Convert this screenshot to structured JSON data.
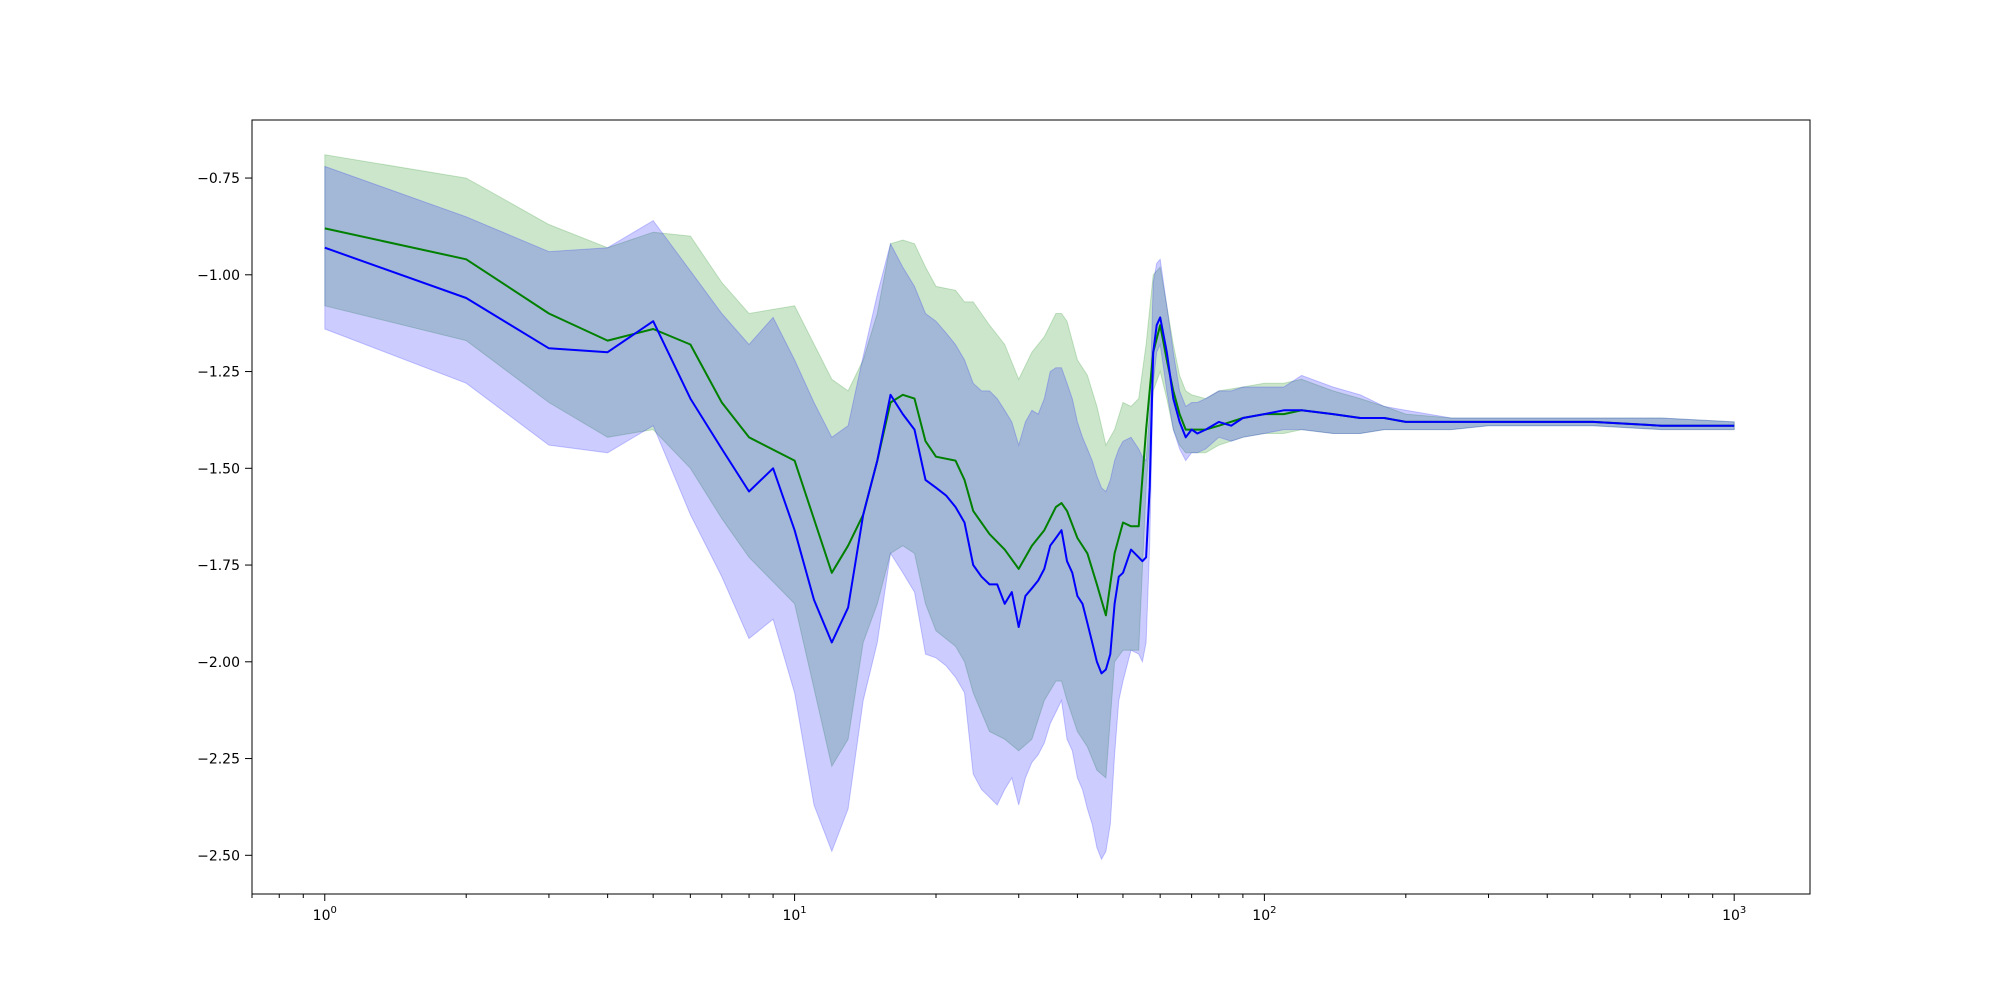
{
  "chart_data": {
    "type": "line",
    "title": "",
    "xlabel": "",
    "ylabel": "",
    "xscale": "log",
    "xlim": [
      0.7,
      1450
    ],
    "ylim": [
      -2.6,
      -0.6
    ],
    "grid": false,
    "legend": "none",
    "x_tick_labels": [
      {
        "value": 1,
        "base": "10",
        "exp": "0"
      },
      {
        "value": 10,
        "base": "10",
        "exp": "1"
      },
      {
        "value": 100,
        "base": "10",
        "exp": "2"
      },
      {
        "value": 1000,
        "base": "10",
        "exp": "3"
      }
    ],
    "y_ticks": [
      -0.75,
      -1.0,
      -1.25,
      -1.5,
      -1.75,
      -2.0,
      -2.25,
      -2.5
    ],
    "y_tick_labels": [
      "−0.75",
      "−1.00",
      "−1.25",
      "−1.50",
      "−1.75",
      "−2.00",
      "−2.25",
      "−2.50"
    ],
    "series": [
      {
        "color": "#008000",
        "band_color": "#008000",
        "band_alpha": 0.2,
        "x": [
          1,
          2,
          3,
          4,
          5,
          6,
          7,
          8,
          10,
          12,
          13,
          14,
          15,
          16,
          17,
          18,
          19,
          20,
          22,
          23,
          24,
          26,
          28,
          30,
          32,
          34,
          36,
          37,
          38,
          40,
          42,
          44,
          46,
          48,
          50,
          52,
          54,
          56,
          58,
          60,
          62,
          64,
          66,
          68,
          70,
          75,
          80,
          90,
          100,
          110,
          120,
          140,
          160,
          180,
          200,
          250,
          300,
          400,
          500,
          700,
          1000
        ],
        "y": [
          -0.88,
          -0.96,
          -1.1,
          -1.17,
          -1.14,
          -1.18,
          -1.33,
          -1.42,
          -1.48,
          -1.77,
          -1.7,
          -1.62,
          -1.48,
          -1.33,
          -1.31,
          -1.32,
          -1.43,
          -1.47,
          -1.48,
          -1.53,
          -1.61,
          -1.67,
          -1.71,
          -1.76,
          -1.7,
          -1.66,
          -1.6,
          -1.59,
          -1.61,
          -1.68,
          -1.72,
          -1.8,
          -1.88,
          -1.72,
          -1.64,
          -1.65,
          -1.65,
          -1.4,
          -1.2,
          -1.13,
          -1.22,
          -1.3,
          -1.36,
          -1.4,
          -1.4,
          -1.4,
          -1.39,
          -1.37,
          -1.36,
          -1.36,
          -1.35,
          -1.36,
          -1.37,
          -1.37,
          -1.38,
          -1.38,
          -1.38,
          -1.38,
          -1.38,
          -1.39,
          -1.39
        ],
        "lower": [
          -1.08,
          -1.17,
          -1.33,
          -1.42,
          -1.4,
          -1.5,
          -1.63,
          -1.73,
          -1.85,
          -2.27,
          -2.2,
          -1.95,
          -1.85,
          -1.72,
          -1.7,
          -1.72,
          -1.85,
          -1.92,
          -1.96,
          -2.0,
          -2.08,
          -2.18,
          -2.2,
          -2.23,
          -2.2,
          -2.1,
          -2.05,
          -2.05,
          -2.1,
          -2.18,
          -2.22,
          -2.28,
          -2.3,
          -2.0,
          -1.97,
          -1.97,
          -1.97,
          -1.55,
          -1.3,
          -1.25,
          -1.32,
          -1.4,
          -1.44,
          -1.46,
          -1.46,
          -1.46,
          -1.44,
          -1.42,
          -1.41,
          -1.41,
          -1.4,
          -1.41,
          -1.41,
          -1.4,
          -1.4,
          -1.4,
          -1.39,
          -1.39,
          -1.39,
          -1.4,
          -1.4
        ],
        "upper": [
          -0.69,
          -0.75,
          -0.87,
          -0.93,
          -0.89,
          -0.9,
          -1.02,
          -1.1,
          -1.08,
          -1.27,
          -1.3,
          -1.22,
          -1.1,
          -0.92,
          -0.91,
          -0.92,
          -0.98,
          -1.03,
          -1.04,
          -1.07,
          -1.07,
          -1.13,
          -1.18,
          -1.27,
          -1.2,
          -1.16,
          -1.1,
          -1.1,
          -1.12,
          -1.22,
          -1.26,
          -1.34,
          -1.44,
          -1.4,
          -1.33,
          -1.34,
          -1.32,
          -1.18,
          -1.0,
          -0.98,
          -1.08,
          -1.18,
          -1.26,
          -1.3,
          -1.31,
          -1.32,
          -1.3,
          -1.29,
          -1.28,
          -1.28,
          -1.27,
          -1.3,
          -1.32,
          -1.34,
          -1.36,
          -1.37,
          -1.37,
          -1.37,
          -1.37,
          -1.37,
          -1.38
        ]
      },
      {
        "color": "#0000ff",
        "band_color": "#0000ff",
        "band_alpha": 0.2,
        "x": [
          1,
          2,
          3,
          4,
          5,
          6,
          7,
          8,
          9,
          10,
          11,
          12,
          13,
          14,
          15,
          16,
          17,
          18,
          19,
          20,
          21,
          22,
          23,
          24,
          25,
          26,
          27,
          28,
          29,
          30,
          31,
          32,
          33,
          34,
          35,
          36,
          37,
          38,
          39,
          40,
          41,
          42,
          43,
          44,
          45,
          46,
          47,
          48,
          49,
          50,
          52,
          54,
          55,
          56,
          57,
          58,
          59,
          60,
          62,
          64,
          66,
          68,
          70,
          72,
          75,
          80,
          85,
          90,
          100,
          110,
          120,
          140,
          160,
          180,
          200,
          250,
          300,
          400,
          500,
          700,
          1000
        ],
        "y": [
          -0.93,
          -1.06,
          -1.19,
          -1.2,
          -1.12,
          -1.32,
          -1.45,
          -1.56,
          -1.5,
          -1.66,
          -1.84,
          -1.95,
          -1.86,
          -1.62,
          -1.48,
          -1.31,
          -1.36,
          -1.4,
          -1.53,
          -1.55,
          -1.57,
          -1.6,
          -1.64,
          -1.75,
          -1.78,
          -1.8,
          -1.8,
          -1.85,
          -1.82,
          -1.91,
          -1.83,
          -1.81,
          -1.79,
          -1.76,
          -1.7,
          -1.68,
          -1.66,
          -1.74,
          -1.77,
          -1.83,
          -1.85,
          -1.9,
          -1.95,
          -2.0,
          -2.03,
          -2.02,
          -1.98,
          -1.85,
          -1.78,
          -1.77,
          -1.71,
          -1.73,
          -1.74,
          -1.73,
          -1.55,
          -1.2,
          -1.13,
          -1.11,
          -1.2,
          -1.32,
          -1.38,
          -1.42,
          -1.4,
          -1.41,
          -1.4,
          -1.38,
          -1.39,
          -1.37,
          -1.36,
          -1.35,
          -1.35,
          -1.36,
          -1.37,
          -1.37,
          -1.38,
          -1.38,
          -1.38,
          -1.38,
          -1.38,
          -1.39,
          -1.39
        ],
        "lower": [
          -1.14,
          -1.28,
          -1.44,
          -1.46,
          -1.39,
          -1.62,
          -1.78,
          -1.94,
          -1.89,
          -2.08,
          -2.37,
          -2.49,
          -2.38,
          -2.1,
          -1.95,
          -1.72,
          -1.77,
          -1.82,
          -1.98,
          -1.99,
          -2.01,
          -2.04,
          -2.08,
          -2.29,
          -2.33,
          -2.35,
          -2.37,
          -2.33,
          -2.3,
          -2.37,
          -2.3,
          -2.26,
          -2.24,
          -2.21,
          -2.16,
          -2.13,
          -2.1,
          -2.2,
          -2.23,
          -2.3,
          -2.33,
          -2.38,
          -2.42,
          -2.48,
          -2.51,
          -2.49,
          -2.42,
          -2.24,
          -2.1,
          -2.05,
          -1.97,
          -1.98,
          -2.0,
          -1.95,
          -1.7,
          -1.28,
          -1.2,
          -1.18,
          -1.3,
          -1.4,
          -1.45,
          -1.48,
          -1.46,
          -1.46,
          -1.45,
          -1.42,
          -1.43,
          -1.42,
          -1.41,
          -1.4,
          -1.4,
          -1.41,
          -1.41,
          -1.4,
          -1.4,
          -1.4,
          -1.39,
          -1.39,
          -1.39,
          -1.4,
          -1.4
        ],
        "upper": [
          -0.72,
          -0.85,
          -0.94,
          -0.93,
          -0.86,
          -0.99,
          -1.1,
          -1.18,
          -1.11,
          -1.22,
          -1.33,
          -1.42,
          -1.39,
          -1.21,
          -1.05,
          -0.92,
          -0.98,
          -1.03,
          -1.1,
          -1.12,
          -1.15,
          -1.18,
          -1.22,
          -1.28,
          -1.3,
          -1.3,
          -1.32,
          -1.35,
          -1.38,
          -1.44,
          -1.38,
          -1.35,
          -1.36,
          -1.32,
          -1.25,
          -1.24,
          -1.24,
          -1.28,
          -1.32,
          -1.38,
          -1.42,
          -1.45,
          -1.48,
          -1.52,
          -1.55,
          -1.56,
          -1.53,
          -1.48,
          -1.45,
          -1.43,
          -1.42,
          -1.45,
          -1.47,
          -1.48,
          -1.35,
          -1.02,
          -0.97,
          -0.96,
          -1.08,
          -1.2,
          -1.3,
          -1.34,
          -1.33,
          -1.33,
          -1.32,
          -1.3,
          -1.3,
          -1.29,
          -1.29,
          -1.29,
          -1.26,
          -1.29,
          -1.31,
          -1.34,
          -1.35,
          -1.37,
          -1.37,
          -1.37,
          -1.37,
          -1.37,
          -1.38
        ]
      }
    ]
  }
}
